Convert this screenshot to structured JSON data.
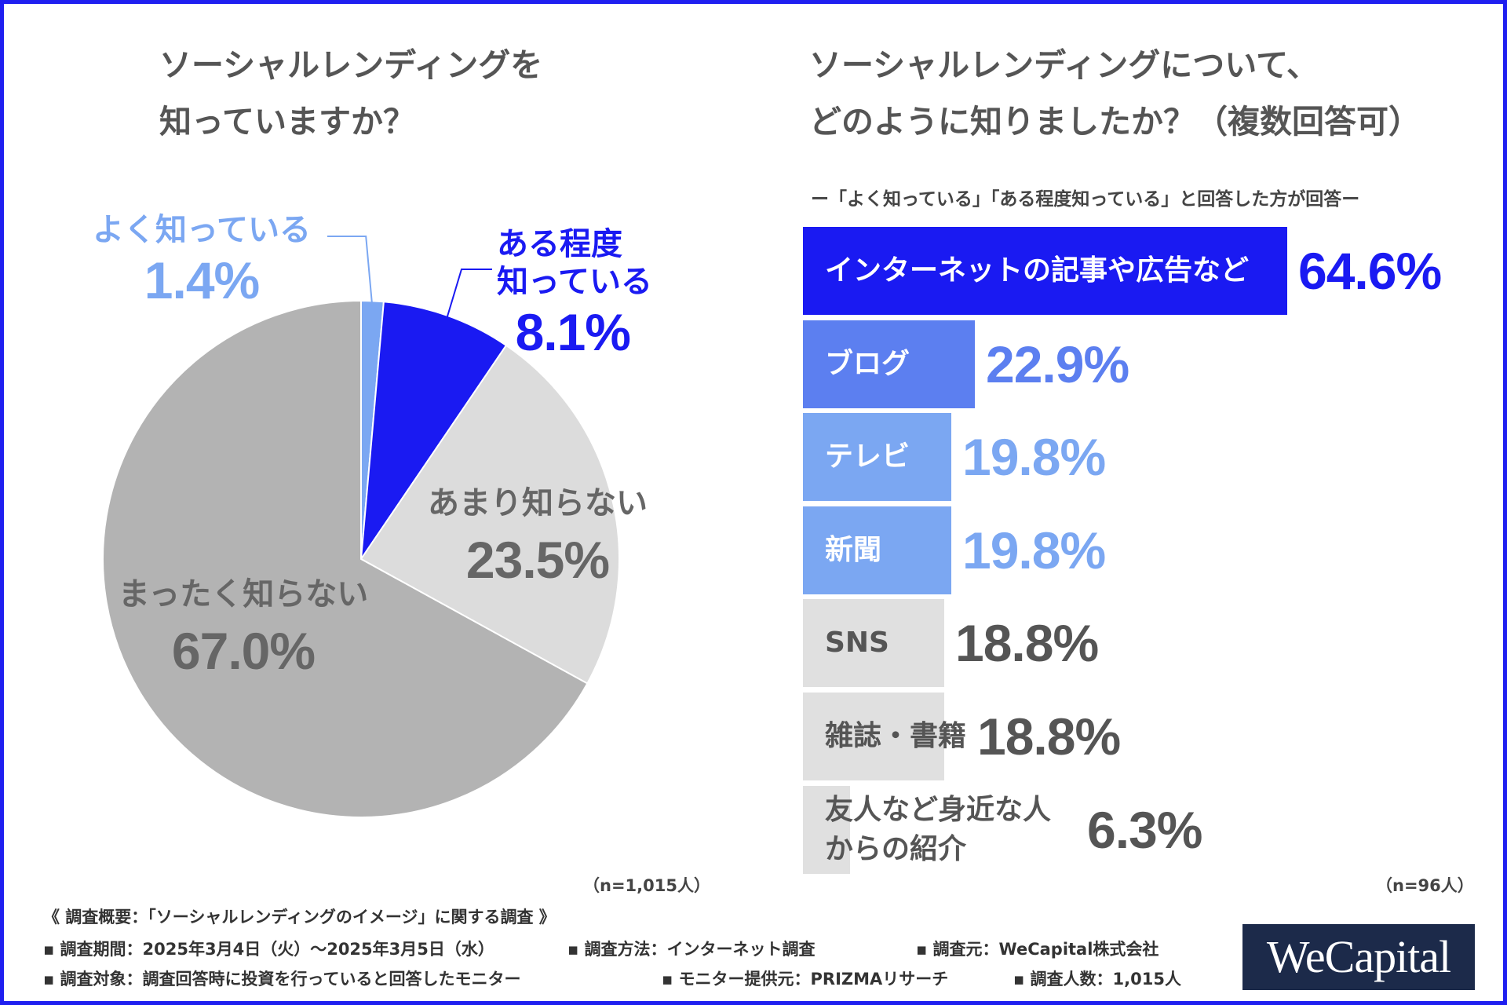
{
  "left_title": {
    "line1": "ソーシャルレンディングを",
    "line2": "知っていますか？"
  },
  "right_title": {
    "line1": "ソーシャルレンディングについて、",
    "line2": "どのように知りましたか？（複数回答可）"
  },
  "right_subtitle": "ー「よく知っている」「ある程度知っている」と回答した方が回答ー",
  "chart_data": [
    {
      "type": "pie",
      "title": "ソーシャルレンディングを知っていますか？",
      "slices": [
        {
          "label": "よく知っている",
          "value": 1.4,
          "display": "1.4%",
          "color": "#7ba7f2",
          "text_color": "#7ba7f2"
        },
        {
          "label": "ある程度知っている",
          "line1": "ある程度",
          "line2": "知っている",
          "value": 8.1,
          "display": "8.1%",
          "color": "#1a1af2",
          "text_color": "#1a1af2"
        },
        {
          "label": "あまり知らない",
          "value": 23.5,
          "display": "23.5%",
          "color": "#dcdcdc",
          "text_color": "#666666"
        },
        {
          "label": "まったく知らない",
          "value": 67.0,
          "display": "67.0%",
          "color": "#b3b3b3",
          "text_color": "#666666"
        }
      ],
      "note": "（n=1,015人）"
    },
    {
      "type": "bar",
      "orientation": "horizontal",
      "title": "ソーシャルレンディングについて、どのように知りましたか？（複数回答可）",
      "categories": [
        "インターネットの記事や広告など",
        "ブログ",
        "テレビ",
        "新聞",
        "SNS",
        "雑誌・書籍",
        "友人など身近な人からの紹介"
      ],
      "values": [
        64.6,
        22.9,
        19.8,
        19.8,
        18.8,
        18.8,
        6.3
      ],
      "display": [
        "64.6%",
        "22.9%",
        "19.8%",
        "19.8%",
        "18.8%",
        "18.8%",
        "6.3%"
      ],
      "bar_colors": [
        "#1a1af2",
        "#5c7ff0",
        "#7ba7f2",
        "#7ba7f2",
        "#e0e0e0",
        "#e0e0e0",
        "#e0e0e0"
      ],
      "label_colors": [
        "#ffffff",
        "#ffffff",
        "#ffffff",
        "#ffffff",
        "#555555",
        "#555555",
        "#555555"
      ],
      "value_colors": [
        "#1a1af2",
        "#5c7ff0",
        "#7ba7f2",
        "#7ba7f2",
        "#555555",
        "#555555",
        "#555555"
      ],
      "xlim": [
        0,
        64.6
      ],
      "note": "（n=96人）"
    }
  ],
  "footer": {
    "heading": "《 調査概要：「ソーシャルレンディングのイメージ」に関する調査 》",
    "period": "▪ 調査期間：2025年3月4日（火）～2025年3月5日（水）",
    "method": "▪ 調査方法：インターネット調査",
    "source": "▪ 調査元：WeCapital株式会社",
    "target": "▪ 調査対象：調査回答時に投資を行っていると回答したモニター",
    "provider": "▪ モニター提供元：PRIZMAリサーチ",
    "count": "▪ 調査人数：1,015人"
  },
  "logo": "WeCapital"
}
